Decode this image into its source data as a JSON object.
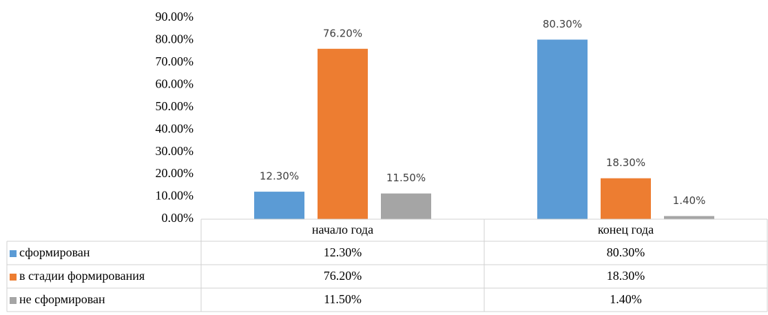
{
  "chart_data": {
    "type": "bar",
    "categories": [
      "начало года",
      "конец года"
    ],
    "series": [
      {
        "name": "сформирован",
        "color": "#5b9bd5",
        "values": [
          12.3,
          80.3
        ],
        "value_labels": [
          "12.30%",
          "80.30%"
        ]
      },
      {
        "name": "в стадии формирования",
        "color": "#ed7d31",
        "values": [
          76.2,
          18.3
        ],
        "value_labels": [
          "76.20%",
          "18.30%"
        ]
      },
      {
        "name": "не сформирован",
        "color": "#a5a5a5",
        "values": [
          11.5,
          1.4
        ],
        "value_labels": [
          "11.50%",
          "1.40%"
        ]
      }
    ],
    "ylim": [
      0,
      90
    ],
    "yticks": [
      {
        "value": 0,
        "label": "0.00%"
      },
      {
        "value": 10,
        "label": "10.00%"
      },
      {
        "value": 20,
        "label": "20.00%"
      },
      {
        "value": 30,
        "label": "30.00%"
      },
      {
        "value": 40,
        "label": "40.00%"
      },
      {
        "value": 50,
        "label": "50.00%"
      },
      {
        "value": 60,
        "label": "60.00%"
      },
      {
        "value": 70,
        "label": "70.00%"
      },
      {
        "value": 80,
        "label": "80.00%"
      },
      {
        "value": 90,
        "label": "90.00%"
      }
    ],
    "grid": false,
    "legend": "table"
  }
}
